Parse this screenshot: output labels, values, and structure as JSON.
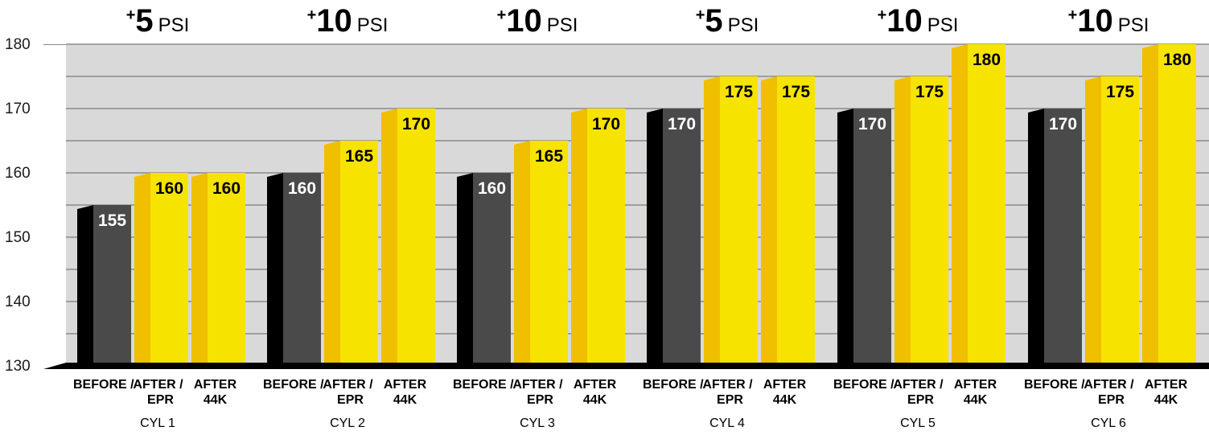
{
  "chart_data": {
    "type": "bar",
    "ylim": [
      130,
      180
    ],
    "yticks": [
      130,
      140,
      150,
      160,
      170,
      180
    ],
    "grid": true,
    "bar_labels": [
      "BEFORE",
      "AFTER EPR",
      "AFTER 44K"
    ],
    "bar_label_lines": [
      [
        "BEFORE",
        "/"
      ],
      [
        "AFTER",
        "EPR",
        "/"
      ],
      [
        "AFTER",
        "44K"
      ]
    ],
    "colors": {
      "before": "#4a4a4a",
      "after": "#f7e300",
      "after_side": "#efbf00",
      "before_side": "#000000",
      "plot_bg": "#d9d9d9"
    },
    "groups": [
      {
        "name": "CYL 1",
        "gain": "5",
        "unit": "PSI",
        "values": [
          155,
          160,
          160
        ]
      },
      {
        "name": "CYL 2",
        "gain": "10",
        "unit": "PSI",
        "values": [
          160,
          165,
          170
        ]
      },
      {
        "name": "CYL 3",
        "gain": "10",
        "unit": "PSI",
        "values": [
          160,
          165,
          170
        ]
      },
      {
        "name": "CYL 4",
        "gain": "5",
        "unit": "PSI",
        "values": [
          170,
          175,
          175
        ]
      },
      {
        "name": "CYL 5",
        "gain": "10",
        "unit": "PSI",
        "values": [
          170,
          175,
          180
        ]
      },
      {
        "name": "CYL 6",
        "gain": "10",
        "unit": "PSI",
        "values": [
          170,
          175,
          180
        ]
      }
    ]
  }
}
